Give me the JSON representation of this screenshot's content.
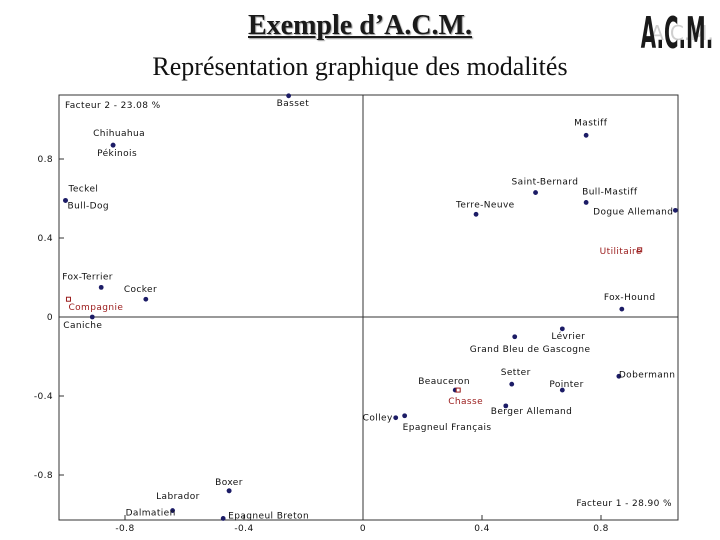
{
  "title": "Exemple d’A.C.M.",
  "subtitle": "Représentation graphique des modalités",
  "logo_text": "A.C.M.",
  "chart_data": {
    "type": "scatter",
    "title": "Représentation graphique des modalités",
    "xlabel": "Facteur 1 - 28.90 %",
    "ylabel": "Facteur 2 - 23.08 %",
    "xlim": [
      -1.01,
      1.05
    ],
    "ylim": [
      -1.02,
      1.12
    ],
    "x_ticks": [
      {
        "value": -0.8,
        "label": "-0.8"
      },
      {
        "value": -0.4,
        "label": "-0.4"
      },
      {
        "value": 0,
        "label": "0"
      },
      {
        "value": 0.4,
        "label": "0.4"
      },
      {
        "value": 0.8,
        "label": "0.8"
      }
    ],
    "y_ticks": [
      {
        "value": 0.8,
        "label": "0.8"
      },
      {
        "value": 0.4,
        "label": "0.4"
      },
      {
        "value": 0,
        "label": "0"
      },
      {
        "value": -0.4,
        "label": "-0.4"
      },
      {
        "value": -0.8,
        "label": "-0.8"
      }
    ],
    "grid": false,
    "colors": {
      "modality": "#1c1c66",
      "supplementary": "#9a1b1b",
      "axis": "#333333"
    },
    "points": [
      {
        "label": "Basset",
        "x": -0.25,
        "y": 1.12,
        "type": "modality"
      },
      {
        "label": "Mastiff",
        "x": 0.75,
        "y": 0.92,
        "type": "modality"
      },
      {
        "label": "Chihuahua",
        "x": -0.84,
        "y": 0.87,
        "type": "modality"
      },
      {
        "label": "Pékinois",
        "x": -0.84,
        "y": 0.87,
        "type": "modality"
      },
      {
        "label": "Saint-Bernard",
        "x": 0.58,
        "y": 0.63,
        "type": "modality"
      },
      {
        "label": "Bull-Mastiff",
        "x": 0.75,
        "y": 0.58,
        "type": "modality"
      },
      {
        "label": "Teckel",
        "x": -1.0,
        "y": 0.59,
        "type": "modality"
      },
      {
        "label": "Bull-Dog",
        "x": -1.0,
        "y": 0.59,
        "type": "modality"
      },
      {
        "label": "Terre-Neuve",
        "x": 0.38,
        "y": 0.52,
        "type": "modality"
      },
      {
        "label": "Dogue Allemand",
        "x": 1.05,
        "y": 0.54,
        "type": "modality"
      },
      {
        "label": "Utilitaire",
        "x": 0.93,
        "y": 0.34,
        "type": "supplementary"
      },
      {
        "label": "Fox-Terrier",
        "x": -0.88,
        "y": 0.15,
        "type": "modality"
      },
      {
        "label": "Cocker",
        "x": -0.73,
        "y": 0.09,
        "type": "modality"
      },
      {
        "label": "Compagnie",
        "x": -0.99,
        "y": 0.09,
        "type": "supplementary"
      },
      {
        "label": "Fox-Hound",
        "x": 0.87,
        "y": 0.04,
        "type": "modality"
      },
      {
        "label": "Caniche",
        "x": -0.91,
        "y": 0.0,
        "type": "modality"
      },
      {
        "label": "Lévrier",
        "x": 0.67,
        "y": -0.06,
        "type": "modality"
      },
      {
        "label": "Grand Bleu de Gascogne",
        "x": 0.51,
        "y": -0.1,
        "type": "modality"
      },
      {
        "label": "Setter",
        "x": 0.5,
        "y": -0.34,
        "type": "modality"
      },
      {
        "label": "Pointer",
        "x": 0.67,
        "y": -0.37,
        "type": "modality"
      },
      {
        "label": "Dobermann",
        "x": 0.86,
        "y": -0.3,
        "type": "modality"
      },
      {
        "label": "Beauceron",
        "x": 0.31,
        "y": -0.37,
        "type": "modality"
      },
      {
        "label": "Chasse",
        "x": 0.32,
        "y": -0.37,
        "type": "supplementary"
      },
      {
        "label": "Berger Allemand",
        "x": 0.48,
        "y": -0.45,
        "type": "modality"
      },
      {
        "label": "Colley",
        "x": 0.11,
        "y": -0.51,
        "type": "modality"
      },
      {
        "label": "Epagneul Français",
        "x": 0.14,
        "y": -0.5,
        "type": "modality"
      },
      {
        "label": "Labrador",
        "x": -0.45,
        "y": -0.88,
        "type": "modality"
      },
      {
        "label": "Boxer",
        "x": -0.45,
        "y": -0.88,
        "type": "modality"
      },
      {
        "label": "Dalmatien",
        "x": -0.64,
        "y": -0.98,
        "type": "modality"
      },
      {
        "label": "Epagneul Breton",
        "x": -0.47,
        "y": -1.02,
        "type": "modality"
      }
    ]
  }
}
